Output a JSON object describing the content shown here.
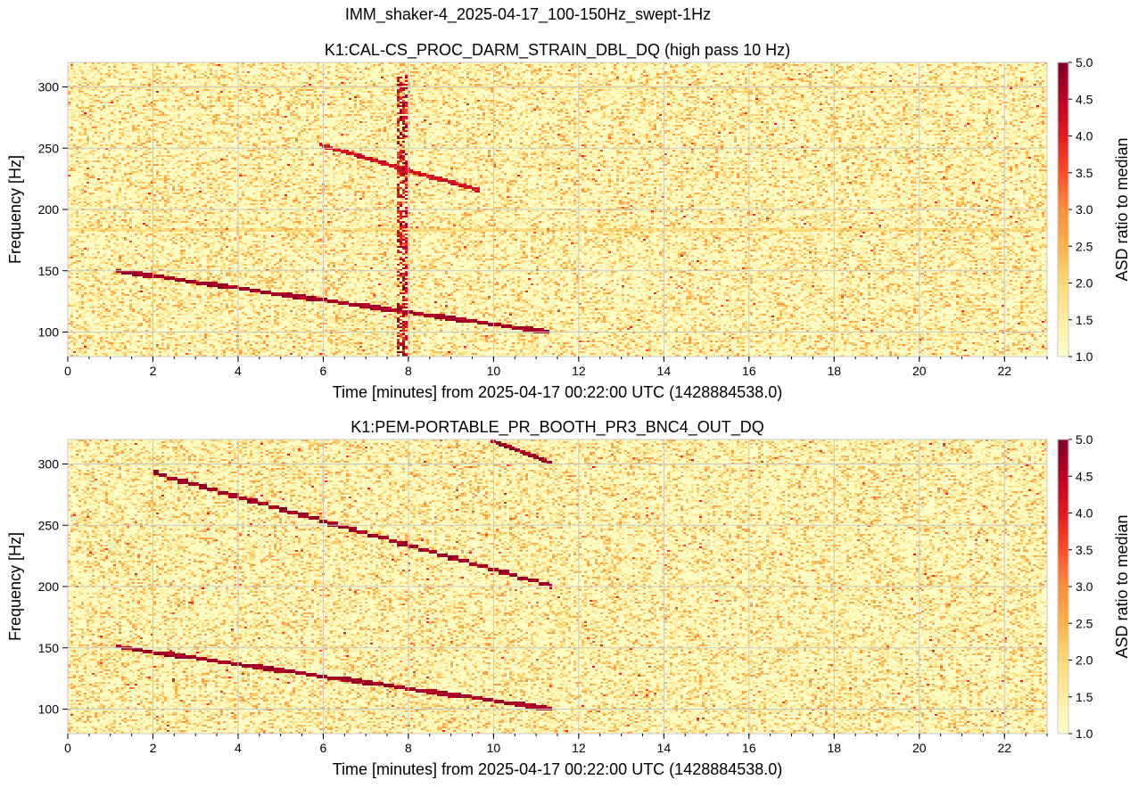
{
  "figure": {
    "suptitle": "IMM_shaker-4_2025-04-17_100-150Hz_swept-1Hz"
  },
  "colors": {
    "cmap": [
      "#ffffcc",
      "#ffeda0",
      "#fed976",
      "#feb24c",
      "#fd8d3c",
      "#fc4e2a",
      "#e31a1c",
      "#bd0026",
      "#800026"
    ],
    "grid": "#c8c8c8",
    "frame": "#000000"
  },
  "chart_data": [
    {
      "type": "heatmap",
      "title": "K1:CAL-CS_PROC_DARM_STRAIN_DBL_DQ (high pass 10 Hz)",
      "xlabel": "Time [minutes] from 2025-04-17 00:22:00 UTC (1428884538.0)",
      "ylabel": "Frequency [Hz]",
      "colorbar_label": "ASD ratio to median",
      "xlim": [
        0,
        23
      ],
      "ylim": [
        80,
        320
      ],
      "clim": [
        1.0,
        5.0
      ],
      "xticks": [
        0,
        2,
        4,
        6,
        8,
        10,
        12,
        14,
        16,
        18,
        20,
        22
      ],
      "xtick_labels": [
        "0",
        "2",
        "4",
        "6",
        "8",
        "10",
        "12",
        "14",
        "16",
        "18",
        "20",
        "22"
      ],
      "yticks": [
        100,
        150,
        200,
        250,
        300
      ],
      "ytick_labels": [
        "100",
        "150",
        "200",
        "250",
        "300"
      ],
      "cticks": [
        1.0,
        1.5,
        2.0,
        2.5,
        3.0,
        3.5,
        4.0,
        4.5,
        5.0
      ],
      "ctick_labels": [
        "1.0",
        "1.5",
        "2.0",
        "2.5",
        "3.0",
        "3.5",
        "4.0",
        "4.5",
        "5.0"
      ],
      "grid": true,
      "features": {
        "sweeps": [
          {
            "name": "fundamental",
            "t0": 1.1,
            "f0": 150,
            "t1": 11.3,
            "f1": 100,
            "level": 5.0
          },
          {
            "name": "second harmonic",
            "t0": 5.9,
            "f0": 253,
            "t1": 9.7,
            "f1": 215,
            "level": 4.5
          }
        ],
        "bursts": [
          {
            "t": 7.85,
            "f_min": 80,
            "f_max": 310,
            "level": 5.0
          }
        ],
        "lines": [
          {
            "f": 183,
            "t_min": 0,
            "t_max": 23,
            "level": 2.2
          },
          {
            "f": 300,
            "t_min": 0,
            "t_max": 23,
            "level": 1.6
          }
        ]
      }
    },
    {
      "type": "heatmap",
      "title": "K1:PEM-PORTABLE_PR_BOOTH_PR3_BNC4_OUT_DQ",
      "xlabel": "Time [minutes] from 2025-04-17 00:22:00 UTC (1428884538.0)",
      "ylabel": "Frequency [Hz]",
      "colorbar_label": "ASD ratio to median",
      "xlim": [
        0,
        23
      ],
      "ylim": [
        80,
        320
      ],
      "clim": [
        1.0,
        5.0
      ],
      "xticks": [
        0,
        2,
        4,
        6,
        8,
        10,
        12,
        14,
        16,
        18,
        20,
        22
      ],
      "xtick_labels": [
        "0",
        "2",
        "4",
        "6",
        "8",
        "10",
        "12",
        "14",
        "16",
        "18",
        "20",
        "22"
      ],
      "yticks": [
        100,
        150,
        200,
        250,
        300
      ],
      "ytick_labels": [
        "100",
        "150",
        "200",
        "250",
        "300"
      ],
      "cticks": [
        1.0,
        1.5,
        2.0,
        2.5,
        3.0,
        3.5,
        4.0,
        4.5,
        5.0
      ],
      "ctick_labels": [
        "1.0",
        "1.5",
        "2.0",
        "2.5",
        "3.0",
        "3.5",
        "4.0",
        "4.5",
        "5.0"
      ],
      "grid": true,
      "features": {
        "sweeps": [
          {
            "name": "fundamental",
            "t0": 1.1,
            "f0": 151,
            "t1": 11.4,
            "f1": 100,
            "level": 5.0
          },
          {
            "name": "second harmonic",
            "t0": 2.0,
            "f0": 293,
            "t1": 11.4,
            "f1": 200,
            "level": 5.0
          },
          {
            "name": "third harmonic",
            "t0": 9.9,
            "f0": 320,
            "t1": 11.4,
            "f1": 300,
            "level": 5.0
          }
        ],
        "bursts": [],
        "lines": []
      }
    }
  ]
}
